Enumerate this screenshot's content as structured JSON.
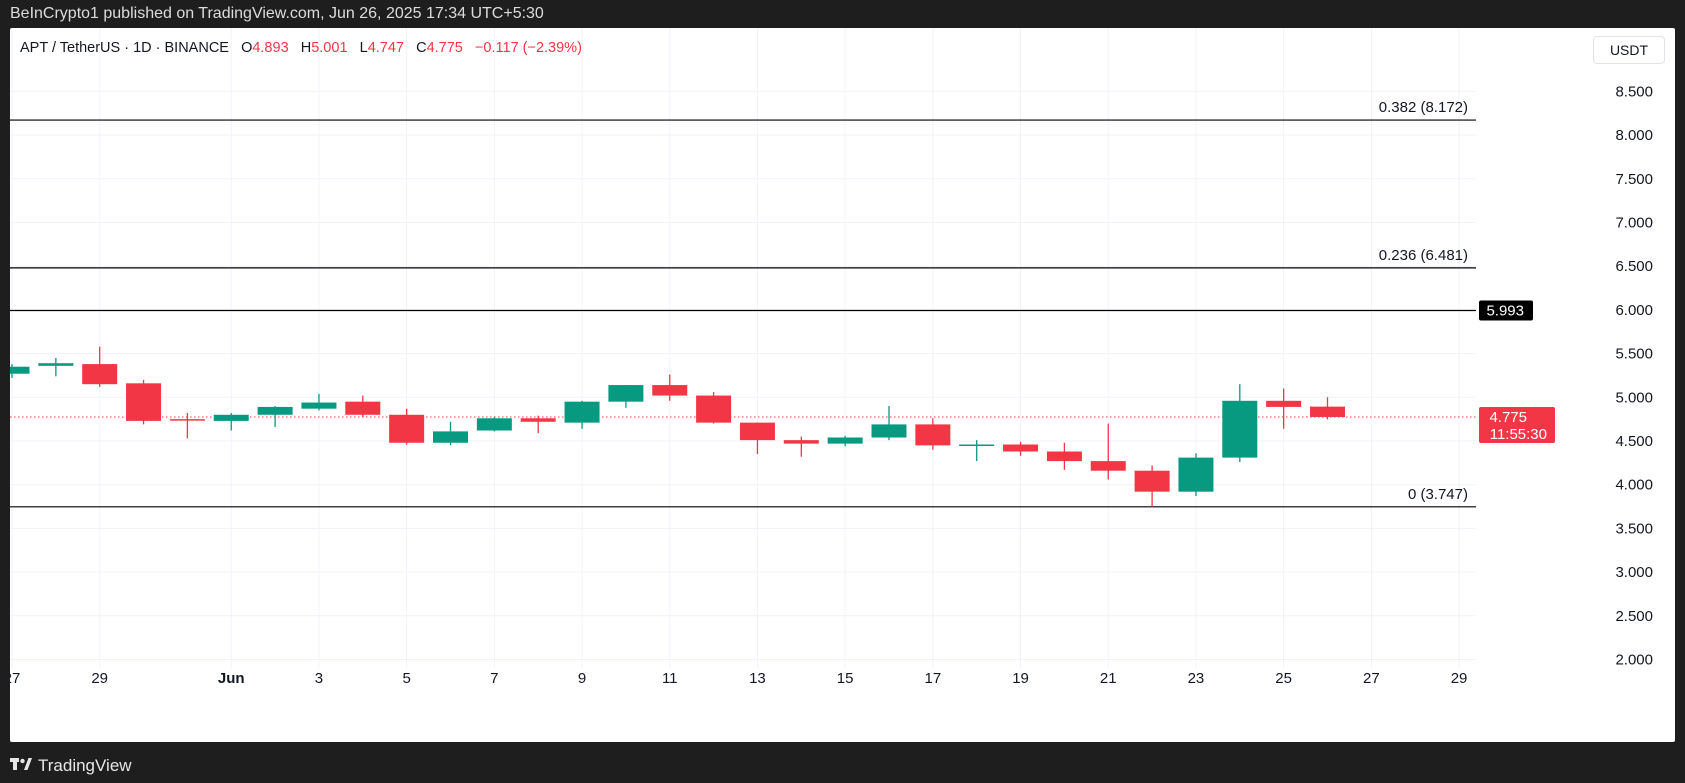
{
  "header": {
    "published": "BeInCrypto1 published on TradingView.com, Jun 26, 2025 17:34 UTC+5:30"
  },
  "footer": {
    "brand": "TradingView",
    "brand_icon": "tradingview-logo-icon"
  },
  "legend": {
    "symbol": "APT / TetherUS · 1D · BINANCE",
    "o_label": "O",
    "o_value": "4.893",
    "h_label": "H",
    "h_value": "5.001",
    "l_label": "L",
    "l_value": "4.747",
    "c_label": "C",
    "c_value": "4.775",
    "change": "−0.117 (−2.39%)"
  },
  "currency": "USDT",
  "colors": {
    "up": "#089981",
    "down": "#f23645",
    "grid": "#f0f3fa",
    "fib_line": "#000000"
  },
  "chart_data": {
    "type": "candlestick",
    "title": "APT / TetherUS · 1D · BINANCE",
    "ylim": [
      2.0,
      8.75
    ],
    "y_ticks": [
      "2.000",
      "2.500",
      "3.000",
      "3.500",
      "4.000",
      "4.500",
      "5.000",
      "5.500",
      "6.000",
      "6.500",
      "7.000",
      "7.500",
      "8.000",
      "8.500"
    ],
    "x_ticks": [
      {
        "day": 27,
        "label": "27"
      },
      {
        "day": 29,
        "label": "29"
      },
      {
        "day": 32,
        "label": "Jun"
      },
      {
        "day": 34,
        "label": "3"
      },
      {
        "day": 36,
        "label": "5"
      },
      {
        "day": 38,
        "label": "7"
      },
      {
        "day": 40,
        "label": "9"
      },
      {
        "day": 42,
        "label": "11"
      },
      {
        "day": 44,
        "label": "13"
      },
      {
        "day": 46,
        "label": "15"
      },
      {
        "day": 48,
        "label": "17"
      },
      {
        "day": 50,
        "label": "19"
      },
      {
        "day": 52,
        "label": "21"
      },
      {
        "day": 54,
        "label": "23"
      },
      {
        "day": 56,
        "label": "25"
      },
      {
        "day": 58,
        "label": "27"
      },
      {
        "day": 60,
        "label": "29"
      }
    ],
    "x_domain_note": "day index counted from May 1 (May 31 = 31, Jun 1 = 32)",
    "candles": [
      {
        "day": 27,
        "o": 5.27,
        "h": 5.38,
        "l": 5.22,
        "c": 5.35
      },
      {
        "day": 28,
        "o": 5.36,
        "h": 5.45,
        "l": 5.24,
        "c": 5.39
      },
      {
        "day": 29,
        "o": 5.38,
        "h": 5.58,
        "l": 5.12,
        "c": 5.15
      },
      {
        "day": 30,
        "o": 5.16,
        "h": 5.2,
        "l": 4.69,
        "c": 4.73
      },
      {
        "day": 31,
        "o": 4.75,
        "h": 4.82,
        "l": 4.53,
        "c": 4.74
      },
      {
        "day": 32,
        "o": 4.73,
        "h": 4.82,
        "l": 4.62,
        "c": 4.8
      },
      {
        "day": 33,
        "o": 4.8,
        "h": 4.9,
        "l": 4.66,
        "c": 4.89
      },
      {
        "day": 34,
        "o": 4.87,
        "h": 5.04,
        "l": 4.85,
        "c": 4.94
      },
      {
        "day": 35,
        "o": 4.95,
        "h": 5.02,
        "l": 4.77,
        "c": 4.8
      },
      {
        "day": 36,
        "o": 4.8,
        "h": 4.87,
        "l": 4.46,
        "c": 4.48
      },
      {
        "day": 37,
        "o": 4.48,
        "h": 4.72,
        "l": 4.45,
        "c": 4.61
      },
      {
        "day": 38,
        "o": 4.62,
        "h": 4.77,
        "l": 4.61,
        "c": 4.76
      },
      {
        "day": 39,
        "o": 4.76,
        "h": 4.79,
        "l": 4.59,
        "c": 4.72
      },
      {
        "day": 40,
        "o": 4.71,
        "h": 4.96,
        "l": 4.64,
        "c": 4.95
      },
      {
        "day": 41,
        "o": 4.95,
        "h": 5.14,
        "l": 4.88,
        "c": 5.14
      },
      {
        "day": 42,
        "o": 5.14,
        "h": 5.26,
        "l": 4.96,
        "c": 5.02
      },
      {
        "day": 43,
        "o": 5.02,
        "h": 5.06,
        "l": 4.7,
        "c": 4.71
      },
      {
        "day": 44,
        "o": 4.71,
        "h": 4.71,
        "l": 4.35,
        "c": 4.51
      },
      {
        "day": 45,
        "o": 4.51,
        "h": 4.55,
        "l": 4.32,
        "c": 4.47
      },
      {
        "day": 46,
        "o": 4.47,
        "h": 4.56,
        "l": 4.44,
        "c": 4.54
      },
      {
        "day": 47,
        "o": 4.54,
        "h": 4.9,
        "l": 4.51,
        "c": 4.69
      },
      {
        "day": 48,
        "o": 4.69,
        "h": 4.76,
        "l": 4.4,
        "c": 4.45
      },
      {
        "day": 49,
        "o": 4.45,
        "h": 4.51,
        "l": 4.27,
        "c": 4.46
      },
      {
        "day": 50,
        "o": 4.46,
        "h": 4.49,
        "l": 4.33,
        "c": 4.38
      },
      {
        "day": 51,
        "o": 4.38,
        "h": 4.48,
        "l": 4.17,
        "c": 4.27
      },
      {
        "day": 52,
        "o": 4.27,
        "h": 4.7,
        "l": 4.06,
        "c": 4.16
      },
      {
        "day": 53,
        "o": 4.16,
        "h": 4.22,
        "l": 3.747,
        "c": 3.92
      },
      {
        "day": 54,
        "o": 3.92,
        "h": 4.36,
        "l": 3.87,
        "c": 4.31
      },
      {
        "day": 55,
        "o": 4.31,
        "h": 5.15,
        "l": 4.26,
        "c": 4.96
      },
      {
        "day": 56,
        "o": 4.96,
        "h": 5.1,
        "l": 4.64,
        "c": 4.89
      },
      {
        "day": 57,
        "o": 4.893,
        "h": 5.001,
        "l": 4.747,
        "c": 4.775
      }
    ],
    "fib_levels": [
      {
        "value": 8.172,
        "label": "0.382 (8.172)"
      },
      {
        "value": 6.481,
        "label": "0.236 (6.481)"
      },
      {
        "value": 5.993,
        "label": ""
      },
      {
        "value": 3.747,
        "label": "0 (3.747)"
      }
    ],
    "marker_level": {
      "value": 5.993,
      "label": "5.993"
    },
    "current_price": {
      "value": 4.775,
      "label": "4.775",
      "countdown": "11:55:30"
    }
  }
}
